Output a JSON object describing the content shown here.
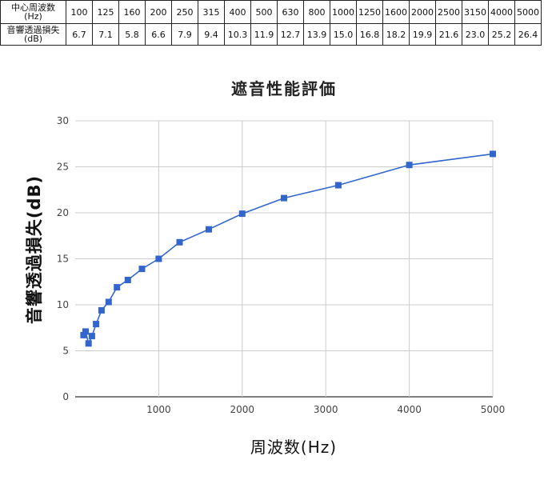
{
  "table": {
    "freq_header": "中心周波数\n(Hz)",
    "loss_header": "音響透過損失\n(dB)",
    "frequencies": [
      "100",
      "125",
      "160",
      "200",
      "250",
      "315",
      "400",
      "500",
      "630",
      "800",
      "1000",
      "1250",
      "1600",
      "2000",
      "2500",
      "3150",
      "4000",
      "5000"
    ],
    "losses": [
      "6.7",
      "7.1",
      "5.8",
      "6.6",
      "7.9",
      "9.4",
      "10.3",
      "11.9",
      "12.7",
      "13.9",
      "15.0",
      "16.8",
      "18.2",
      "19.9",
      "21.6",
      "23.0",
      "25.2",
      "26.4"
    ]
  },
  "chart_data": {
    "type": "line",
    "title": "遮音性能評価",
    "xlabel": "周波数(Hz)",
    "ylabel": "音響透過損失(dB)",
    "x": [
      100,
      125,
      160,
      200,
      250,
      315,
      400,
      500,
      630,
      800,
      1000,
      1250,
      1600,
      2000,
      2500,
      3150,
      4000,
      5000
    ],
    "series": [
      {
        "values": [
          6.7,
          7.1,
          5.8,
          6.6,
          7.9,
          9.4,
          10.3,
          11.9,
          12.7,
          13.9,
          15.0,
          16.8,
          18.2,
          19.9,
          21.6,
          23.0,
          25.2,
          26.4
        ]
      }
    ],
    "xlim": [
      0,
      5000
    ],
    "ylim": [
      0,
      30
    ],
    "xticks": [
      "1000",
      "2000",
      "3000",
      "4000",
      "5000"
    ],
    "yticks": [
      "0",
      "5",
      "10",
      "15",
      "20",
      "25",
      "30"
    ],
    "grid": true,
    "colors": {
      "series": "#3366cc",
      "grid": "#cccccc",
      "axis": "#333333"
    }
  }
}
